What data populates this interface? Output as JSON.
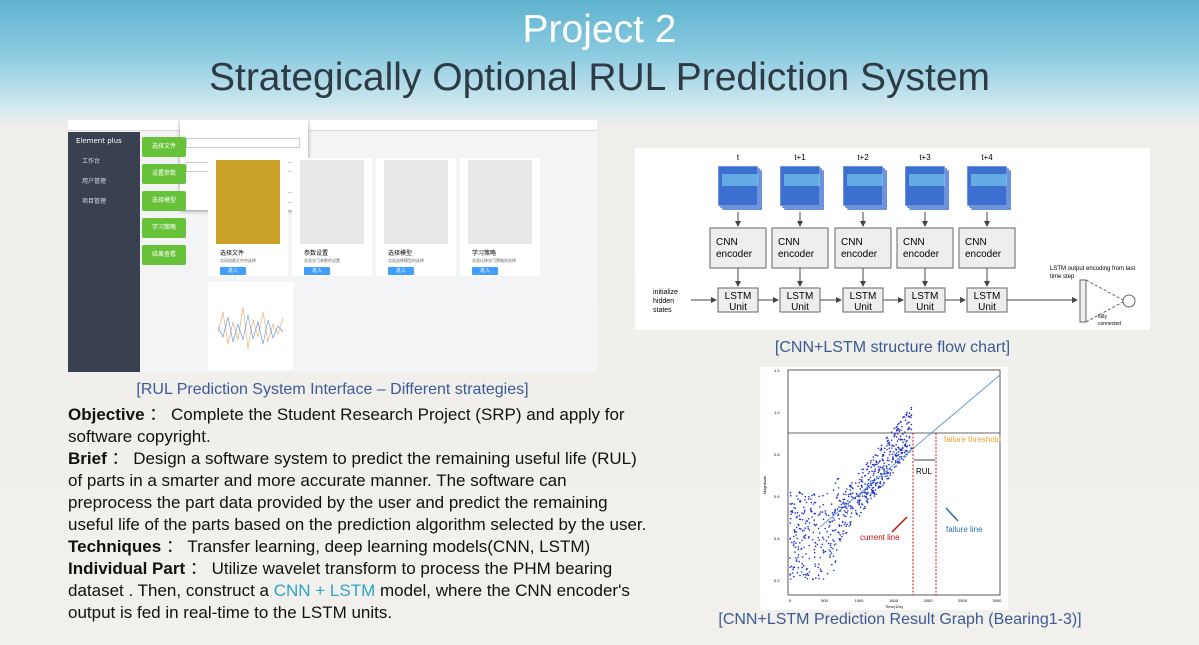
{
  "header": {
    "title": "Project 2",
    "subtitle": "Strategically Optional RUL Prediction System"
  },
  "interface": {
    "caption": "[RUL Prediction System Interface – Different strategies]",
    "brand": "Element plus",
    "menu": [
      "工作台",
      "用户管理",
      "项目管理"
    ],
    "buttons": [
      "选择文件",
      "设置参数",
      "选择模型",
      "学习策略",
      "结果查看"
    ],
    "cards": [
      {
        "title": "选择文件",
        "desc": "实现加载文件的选择"
      },
      {
        "title": "参数设置",
        "desc": "实现学习参数的设置"
      },
      {
        "title": "选择模型",
        "desc": "实现选择模型的选择"
      },
      {
        "title": "学习策略",
        "desc": "实现迁移学习策略的选择"
      }
    ],
    "enter": "进入"
  },
  "description": {
    "items": [
      {
        "label": "Objective",
        "segments": [
          {
            "text": "： Complete the Student Research Project (SRP) and apply for software copyright."
          }
        ]
      },
      {
        "label": "Brief",
        "segments": [
          {
            "text": "： Design a software system to predict the remaining useful life (RUL) of parts in a smarter and more accurate manner. The software can preprocess the part data provided by the user and predict the remaining useful life of the parts based on the prediction algorithm selected by the user."
          }
        ]
      },
      {
        "label": "Techniques",
        "segments": [
          {
            "text": "： Transfer learning, deep learning models(CNN, LSTM)"
          }
        ]
      },
      {
        "label": "Individual Part",
        "segments": [
          {
            "text": "： Utilize wavelet transform to process the PHM bearing dataset . Then, construct a "
          },
          {
            "text": "CNN + LSTM",
            "color": "#2ea3c9"
          },
          {
            "text": " model, where the CNN encoder's output is fed in real-time to the LSTM units."
          }
        ]
      }
    ]
  },
  "diagram": {
    "caption": "[CNN+LSTM structure flow chart]",
    "times": [
      "t",
      "t+1",
      "t+2",
      "t+3",
      "t+4"
    ],
    "encoder": [
      "CNN",
      "encoder"
    ],
    "lstm": [
      "LSTM",
      "Unit"
    ],
    "init": [
      "initialize",
      "hidden",
      "states"
    ],
    "output": [
      "LSTM output encoding from last",
      "time step"
    ],
    "fc": [
      "fully",
      "connected"
    ]
  },
  "graph": {
    "caption": "[CNN+LSTM Prediction Result Graph (Bearing1-3)]",
    "threshold": "failure threshold",
    "rul": "RUL",
    "current": "current line",
    "failure": "failure line",
    "x_label": "Time(10s)",
    "y_label": "Magnitude",
    "x_ticks": [
      "0",
      "500",
      "1000",
      "1500",
      "2000",
      "2500",
      "3000"
    ],
    "y_ticks": [
      "0.2",
      "0.4",
      "0.6",
      "0.8",
      "1.0",
      "1.2"
    ]
  }
}
